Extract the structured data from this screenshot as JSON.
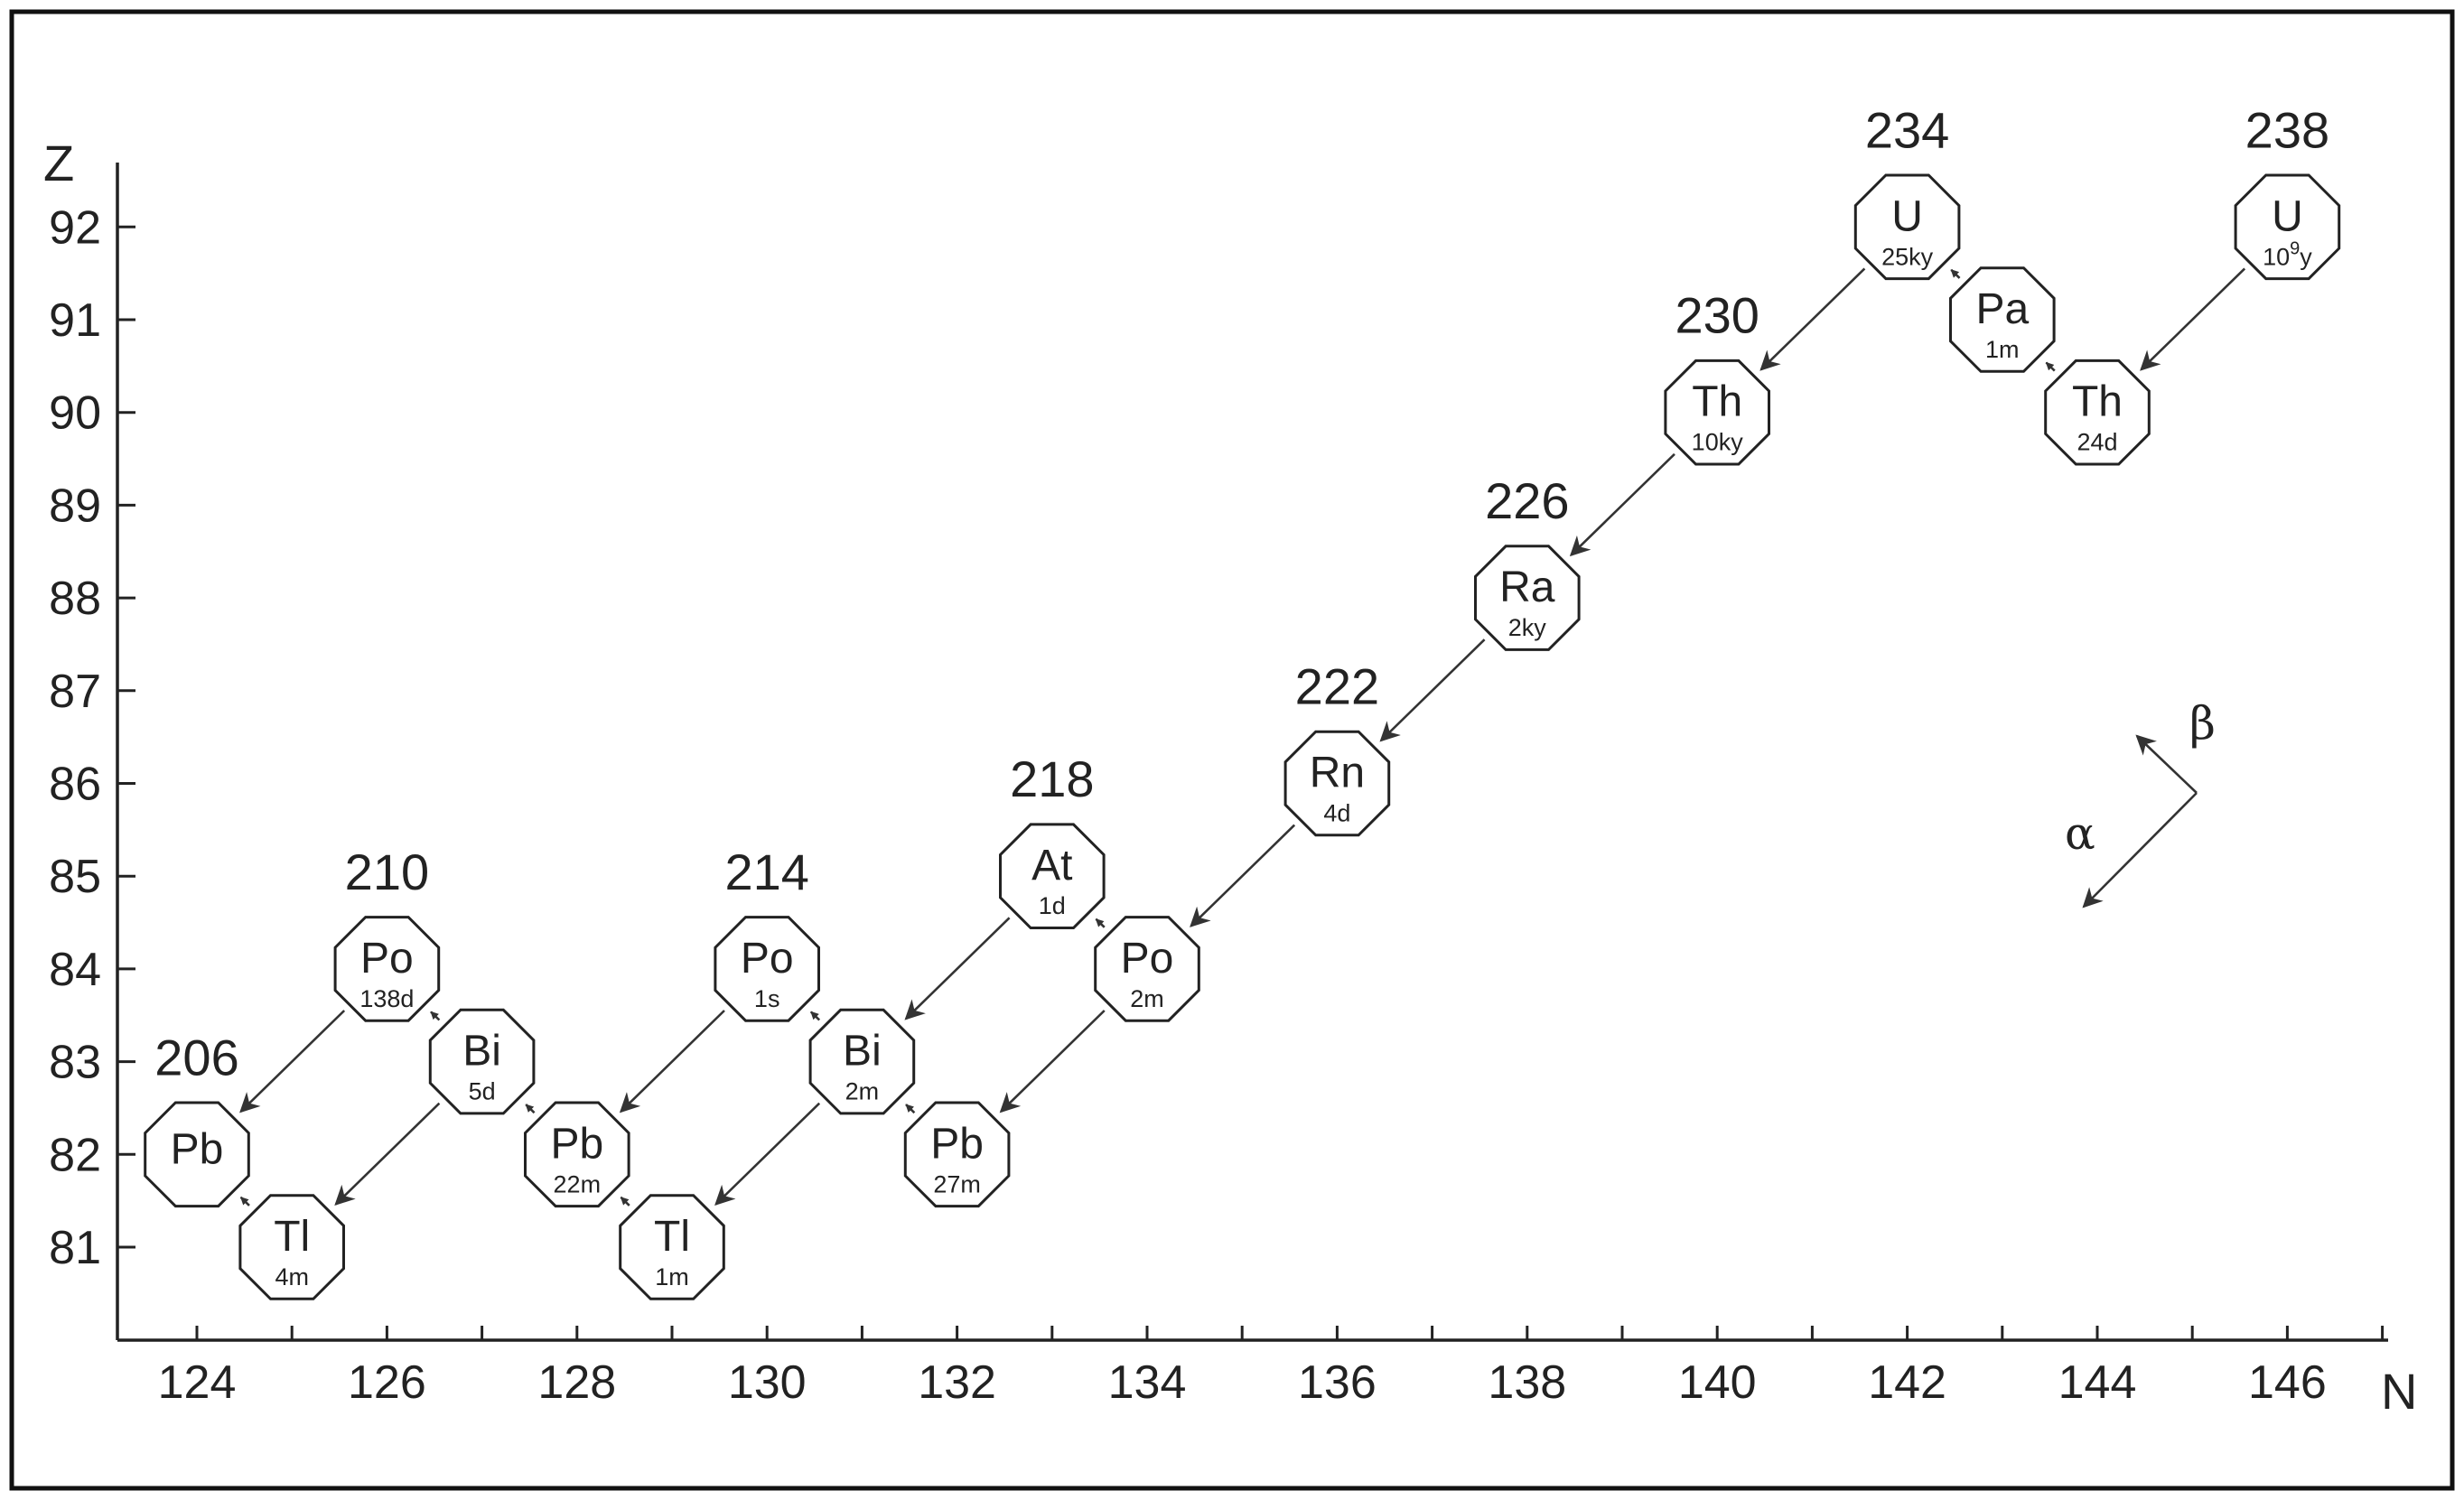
{
  "axes": {
    "x_label": "N",
    "y_label": "Z",
    "x_ticks": [
      "124",
      "126",
      "128",
      "130",
      "132",
      "134",
      "136",
      "138",
      "140",
      "142",
      "144",
      "146"
    ],
    "y_ticks": [
      "81",
      "82",
      "83",
      "84",
      "85",
      "86",
      "87",
      "88",
      "89",
      "90",
      "91",
      "92"
    ]
  },
  "nuclides": [
    {
      "key": "u238",
      "symbol": "U",
      "halflife": "10",
      "halflife_sup": "9",
      "halflife_suffix": "y",
      "N": 146,
      "Z": 92,
      "mass": "238"
    },
    {
      "key": "th234",
      "symbol": "Th",
      "halflife": "24d",
      "N": 144,
      "Z": 90
    },
    {
      "key": "pa234",
      "symbol": "Pa",
      "halflife": "1m",
      "N": 143,
      "Z": 91
    },
    {
      "key": "u234",
      "symbol": "U",
      "halflife": "25ky",
      "N": 142,
      "Z": 92,
      "mass": "234"
    },
    {
      "key": "th230",
      "symbol": "Th",
      "halflife": "10ky",
      "N": 140,
      "Z": 90,
      "mass": "230"
    },
    {
      "key": "ra226",
      "symbol": "Ra",
      "halflife": "2ky",
      "N": 138,
      "Z": 88,
      "mass": "226"
    },
    {
      "key": "rn222",
      "symbol": "Rn",
      "halflife": "4d",
      "N": 136,
      "Z": 86,
      "mass": "222"
    },
    {
      "key": "po218",
      "symbol": "Po",
      "halflife": "2m",
      "N": 134,
      "Z": 84
    },
    {
      "key": "at218",
      "symbol": "At",
      "halflife": "1d",
      "N": 133,
      "Z": 85,
      "mass": "218"
    },
    {
      "key": "pb214",
      "symbol": "Pb",
      "halflife": "27m",
      "N": 132,
      "Z": 82
    },
    {
      "key": "bi214",
      "symbol": "Bi",
      "halflife": "2m",
      "N": 131,
      "Z": 83
    },
    {
      "key": "po214",
      "symbol": "Po",
      "halflife": "1s",
      "N": 130,
      "Z": 84,
      "mass": "214"
    },
    {
      "key": "tl210",
      "symbol": "Tl",
      "halflife": "1m",
      "N": 129,
      "Z": 81
    },
    {
      "key": "pb210",
      "symbol": "Pb",
      "halflife": "22m",
      "N": 128,
      "Z": 82
    },
    {
      "key": "bi210",
      "symbol": "Bi",
      "halflife": "5d",
      "N": 127,
      "Z": 83
    },
    {
      "key": "po210",
      "symbol": "Po",
      "halflife": "138d",
      "N": 126,
      "Z": 84,
      "mass": "210"
    },
    {
      "key": "tl206",
      "symbol": "Tl",
      "halflife": "4m",
      "N": 125,
      "Z": 81
    },
    {
      "key": "pb206",
      "symbol": "Pb",
      "halflife": "",
      "N": 124,
      "Z": 82,
      "mass": "206"
    }
  ],
  "decays": [
    {
      "type": "alpha",
      "from": "u238",
      "to": "th234"
    },
    {
      "type": "beta",
      "from": "th234",
      "to": "pa234"
    },
    {
      "type": "beta",
      "from": "pa234",
      "to": "u234"
    },
    {
      "type": "alpha",
      "from": "u234",
      "to": "th230"
    },
    {
      "type": "alpha",
      "from": "th230",
      "to": "ra226"
    },
    {
      "type": "alpha",
      "from": "ra226",
      "to": "rn222"
    },
    {
      "type": "alpha",
      "from": "rn222",
      "to": "po218"
    },
    {
      "type": "beta",
      "from": "po218",
      "to": "at218"
    },
    {
      "type": "alpha",
      "from": "at218",
      "to": "bi214"
    },
    {
      "type": "alpha",
      "from": "po218",
      "to": "pb214"
    },
    {
      "type": "beta",
      "from": "pb214",
      "to": "bi214"
    },
    {
      "type": "beta",
      "from": "bi214",
      "to": "po214"
    },
    {
      "type": "alpha",
      "from": "bi214",
      "to": "tl210"
    },
    {
      "type": "alpha",
      "from": "po214",
      "to": "pb210"
    },
    {
      "type": "beta",
      "from": "tl210",
      "to": "pb210"
    },
    {
      "type": "beta",
      "from": "pb210",
      "to": "bi210"
    },
    {
      "type": "beta",
      "from": "bi210",
      "to": "po210"
    },
    {
      "type": "alpha",
      "from": "bi210",
      "to": "tl206"
    },
    {
      "type": "alpha",
      "from": "po210",
      "to": "pb206"
    },
    {
      "type": "beta",
      "from": "tl206",
      "to": "pb206"
    }
  ],
  "legend": {
    "alpha_label": "α",
    "beta_label": "β"
  }
}
